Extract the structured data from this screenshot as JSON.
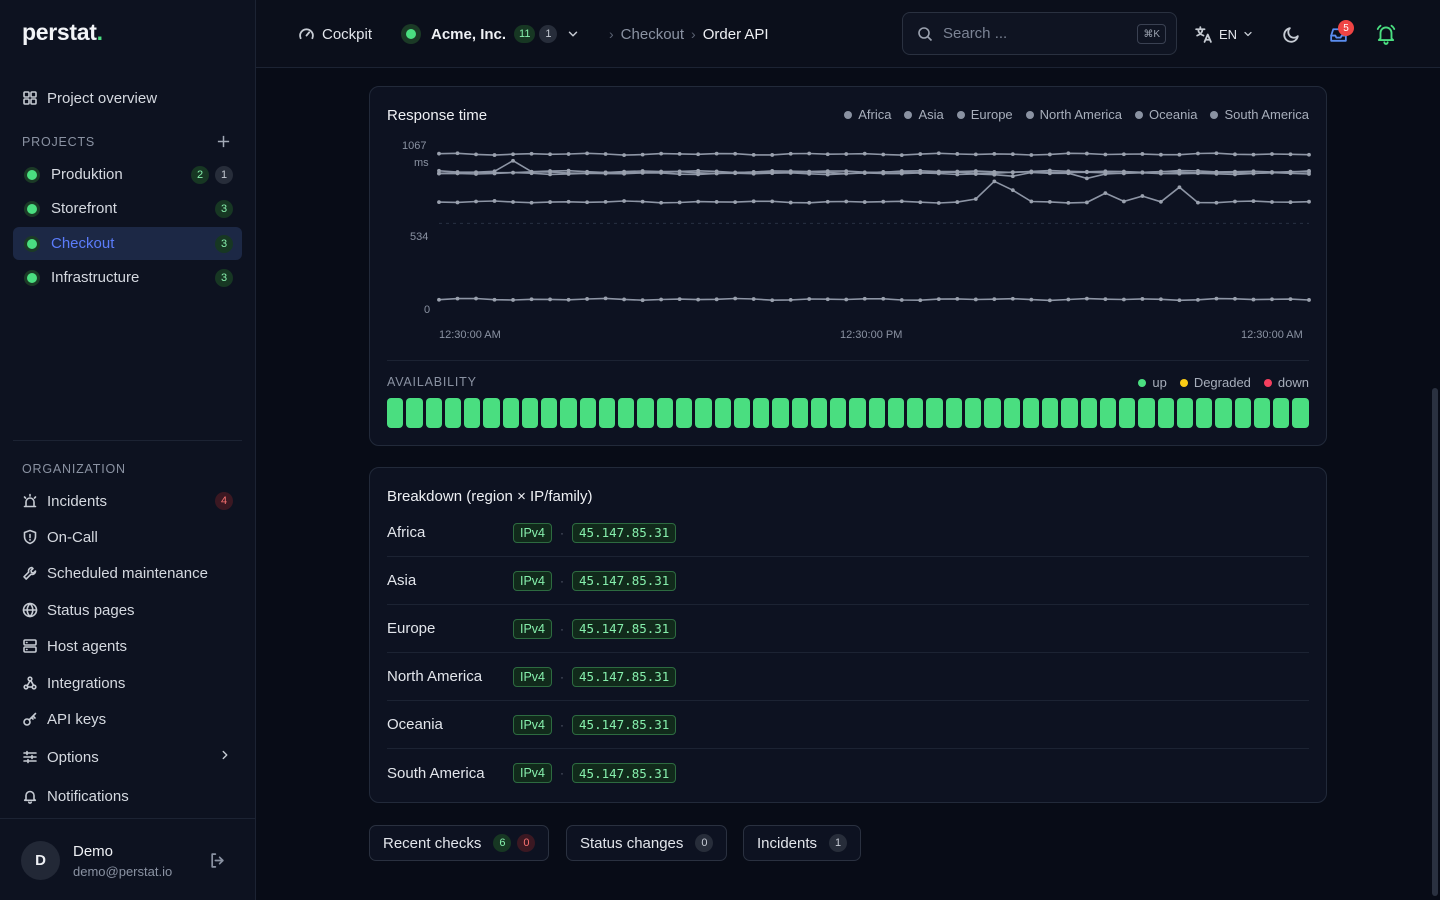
{
  "app": {
    "logo": "perstat",
    "logo_dot": "."
  },
  "sidebar": {
    "overview_label": "Project overview",
    "projects_label": "PROJECTS",
    "projects": [
      {
        "name": "Produktion",
        "badges": [
          {
            "value": "2",
            "tone": "green"
          },
          {
            "value": "1",
            "tone": "gray"
          }
        ],
        "active": false
      },
      {
        "name": "Storefront",
        "badges": [
          {
            "value": "3",
            "tone": "green"
          }
        ],
        "active": false
      },
      {
        "name": "Checkout",
        "badges": [
          {
            "value": "3",
            "tone": "green"
          }
        ],
        "active": true
      },
      {
        "name": "Infrastructure",
        "badges": [
          {
            "value": "3",
            "tone": "green"
          }
        ],
        "active": false
      }
    ],
    "organization_label": "ORGANIZATION",
    "org_items": [
      {
        "label": "Incidents",
        "icon": "siren-icon",
        "badge": "4"
      },
      {
        "label": "On-Call",
        "icon": "shield-icon"
      },
      {
        "label": "Scheduled maintenance",
        "icon": "wrench-icon"
      },
      {
        "label": "Status pages",
        "icon": "globe-icon"
      },
      {
        "label": "Host agents",
        "icon": "server-icon"
      },
      {
        "label": "Integrations",
        "icon": "webhook-icon"
      },
      {
        "label": "API keys",
        "icon": "key-icon"
      },
      {
        "label": "Options",
        "icon": "sliders-icon"
      },
      {
        "label": "Notifications",
        "icon": "bell-icon"
      }
    ],
    "user": {
      "initial": "D",
      "name": "Demo",
      "email": "demo@perstat.io"
    }
  },
  "topbar": {
    "cockpit_label": "Cockpit",
    "org_name": "Acme, Inc.",
    "org_badge_green": "11",
    "org_badge_gray": "1",
    "breadcrumb_project": "Checkout",
    "breadcrumb_current": "Order API",
    "search_placeholder": "Search ...",
    "search_shortcut": "⌘K",
    "language": "EN",
    "notification_count": "5"
  },
  "response_card": {
    "title": "Response time",
    "legend": [
      "Africa",
      "Asia",
      "Europe",
      "North America",
      "Oceania",
      "South America"
    ],
    "y_top_label": "1067",
    "y_unit": "ms",
    "y_mid_label": "534",
    "y_zero_label": "0",
    "x_labels": [
      "12:30:00 AM",
      "12:30:00 PM",
      "12:30:00 AM"
    ]
  },
  "chart_data": {
    "type": "line",
    "ylabel": "ms",
    "ylim": [
      0,
      1067
    ],
    "x_ticks": [
      "12:30:00 AM",
      "12:30:00 PM",
      "12:30:00 AM"
    ],
    "points_per_series": 48,
    "series": [
      {
        "name": "Africa",
        "baseline": 1005,
        "spikes": []
      },
      {
        "name": "Asia",
        "baseline": 887,
        "spikes": [
          {
            "i": 4,
            "v": 960
          }
        ]
      },
      {
        "name": "Europe",
        "baseline": 880,
        "spikes": []
      },
      {
        "name": "North America",
        "baseline": 873,
        "spikes": [
          {
            "i": 30,
            "v": 865
          }
        ]
      },
      {
        "name": "Oceania",
        "baseline": 680,
        "spikes": []
      },
      {
        "name": "South America",
        "baseline": 18,
        "spikes": []
      }
    ]
  },
  "availability": {
    "title": "AVAILABILITY",
    "legend": [
      {
        "label": "up",
        "color": "#4ade80"
      },
      {
        "label": "Degraded",
        "color": "#facc15"
      },
      {
        "label": "down",
        "color": "#f43f5e"
      }
    ],
    "bars": 48,
    "status": "up"
  },
  "breakdown": {
    "title": "Breakdown (region × IP/family)",
    "rows": [
      {
        "region": "Africa",
        "family": "IPv4",
        "ip": "45.147.85.31"
      },
      {
        "region": "Asia",
        "family": "IPv4",
        "ip": "45.147.85.31"
      },
      {
        "region": "Europe",
        "family": "IPv4",
        "ip": "45.147.85.31"
      },
      {
        "region": "North America",
        "family": "IPv4",
        "ip": "45.147.85.31"
      },
      {
        "region": "Oceania",
        "family": "IPv4",
        "ip": "45.147.85.31"
      },
      {
        "region": "South America",
        "family": "IPv4",
        "ip": "45.147.85.31"
      }
    ]
  },
  "tabs": [
    {
      "label": "Recent checks",
      "badges": [
        {
          "value": "6",
          "tone": "green"
        },
        {
          "value": "0",
          "tone": "red"
        }
      ]
    },
    {
      "label": "Status changes",
      "badges": [
        {
          "value": "0",
          "tone": "gray"
        }
      ]
    },
    {
      "label": "Incidents",
      "badges": [
        {
          "value": "1",
          "tone": "gray"
        }
      ]
    }
  ]
}
